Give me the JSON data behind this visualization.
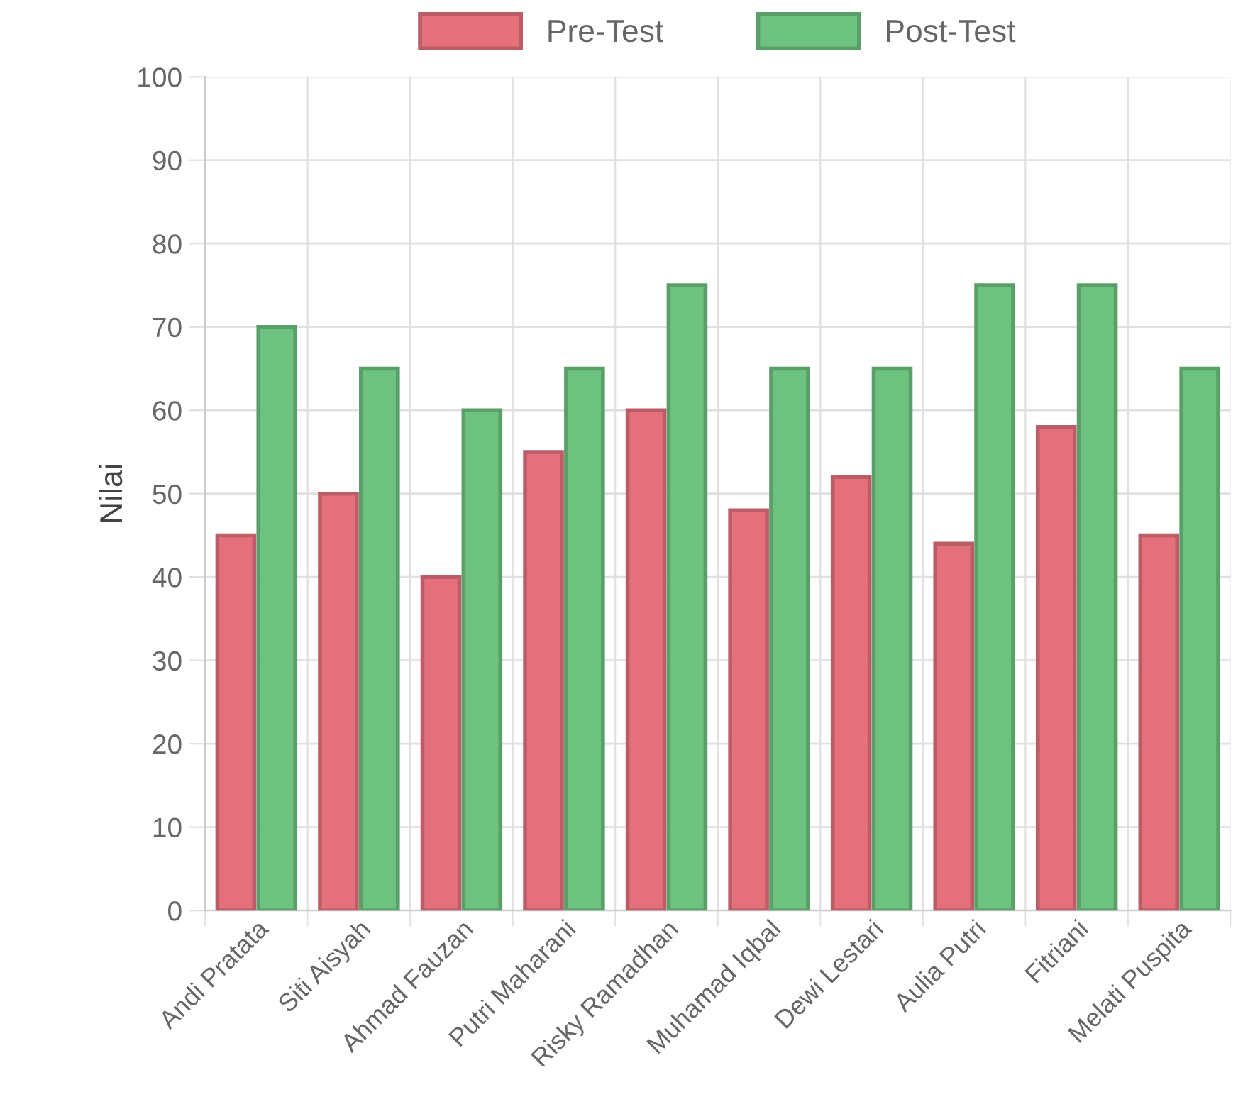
{
  "chart_data": {
    "type": "bar",
    "ylabel": "Nilai",
    "categories": [
      "Andi Pratata",
      "Siti Aisyah",
      "Ahmad Fauzan",
      "Putri Maharani",
      "Risky Ramadhan",
      "Muhamad Iqbal",
      "Dewi Lestari",
      "Aulia Putri",
      "Fitriani",
      "Melati Puspita"
    ],
    "series": [
      {
        "name": "Pre-Test",
        "color": "#e4707c",
        "values": [
          45,
          50,
          40,
          55,
          60,
          48,
          52,
          44,
          58,
          45
        ]
      },
      {
        "name": "Post-Test",
        "color": "#6cc27e",
        "values": [
          70,
          65,
          60,
          65,
          75,
          65,
          65,
          75,
          75,
          65
        ]
      }
    ],
    "ylim": [
      0,
      100
    ],
    "yticks": [
      0,
      10,
      20,
      30,
      40,
      50,
      60,
      70,
      80,
      90,
      100
    ],
    "grid": true,
    "legend": "top"
  }
}
